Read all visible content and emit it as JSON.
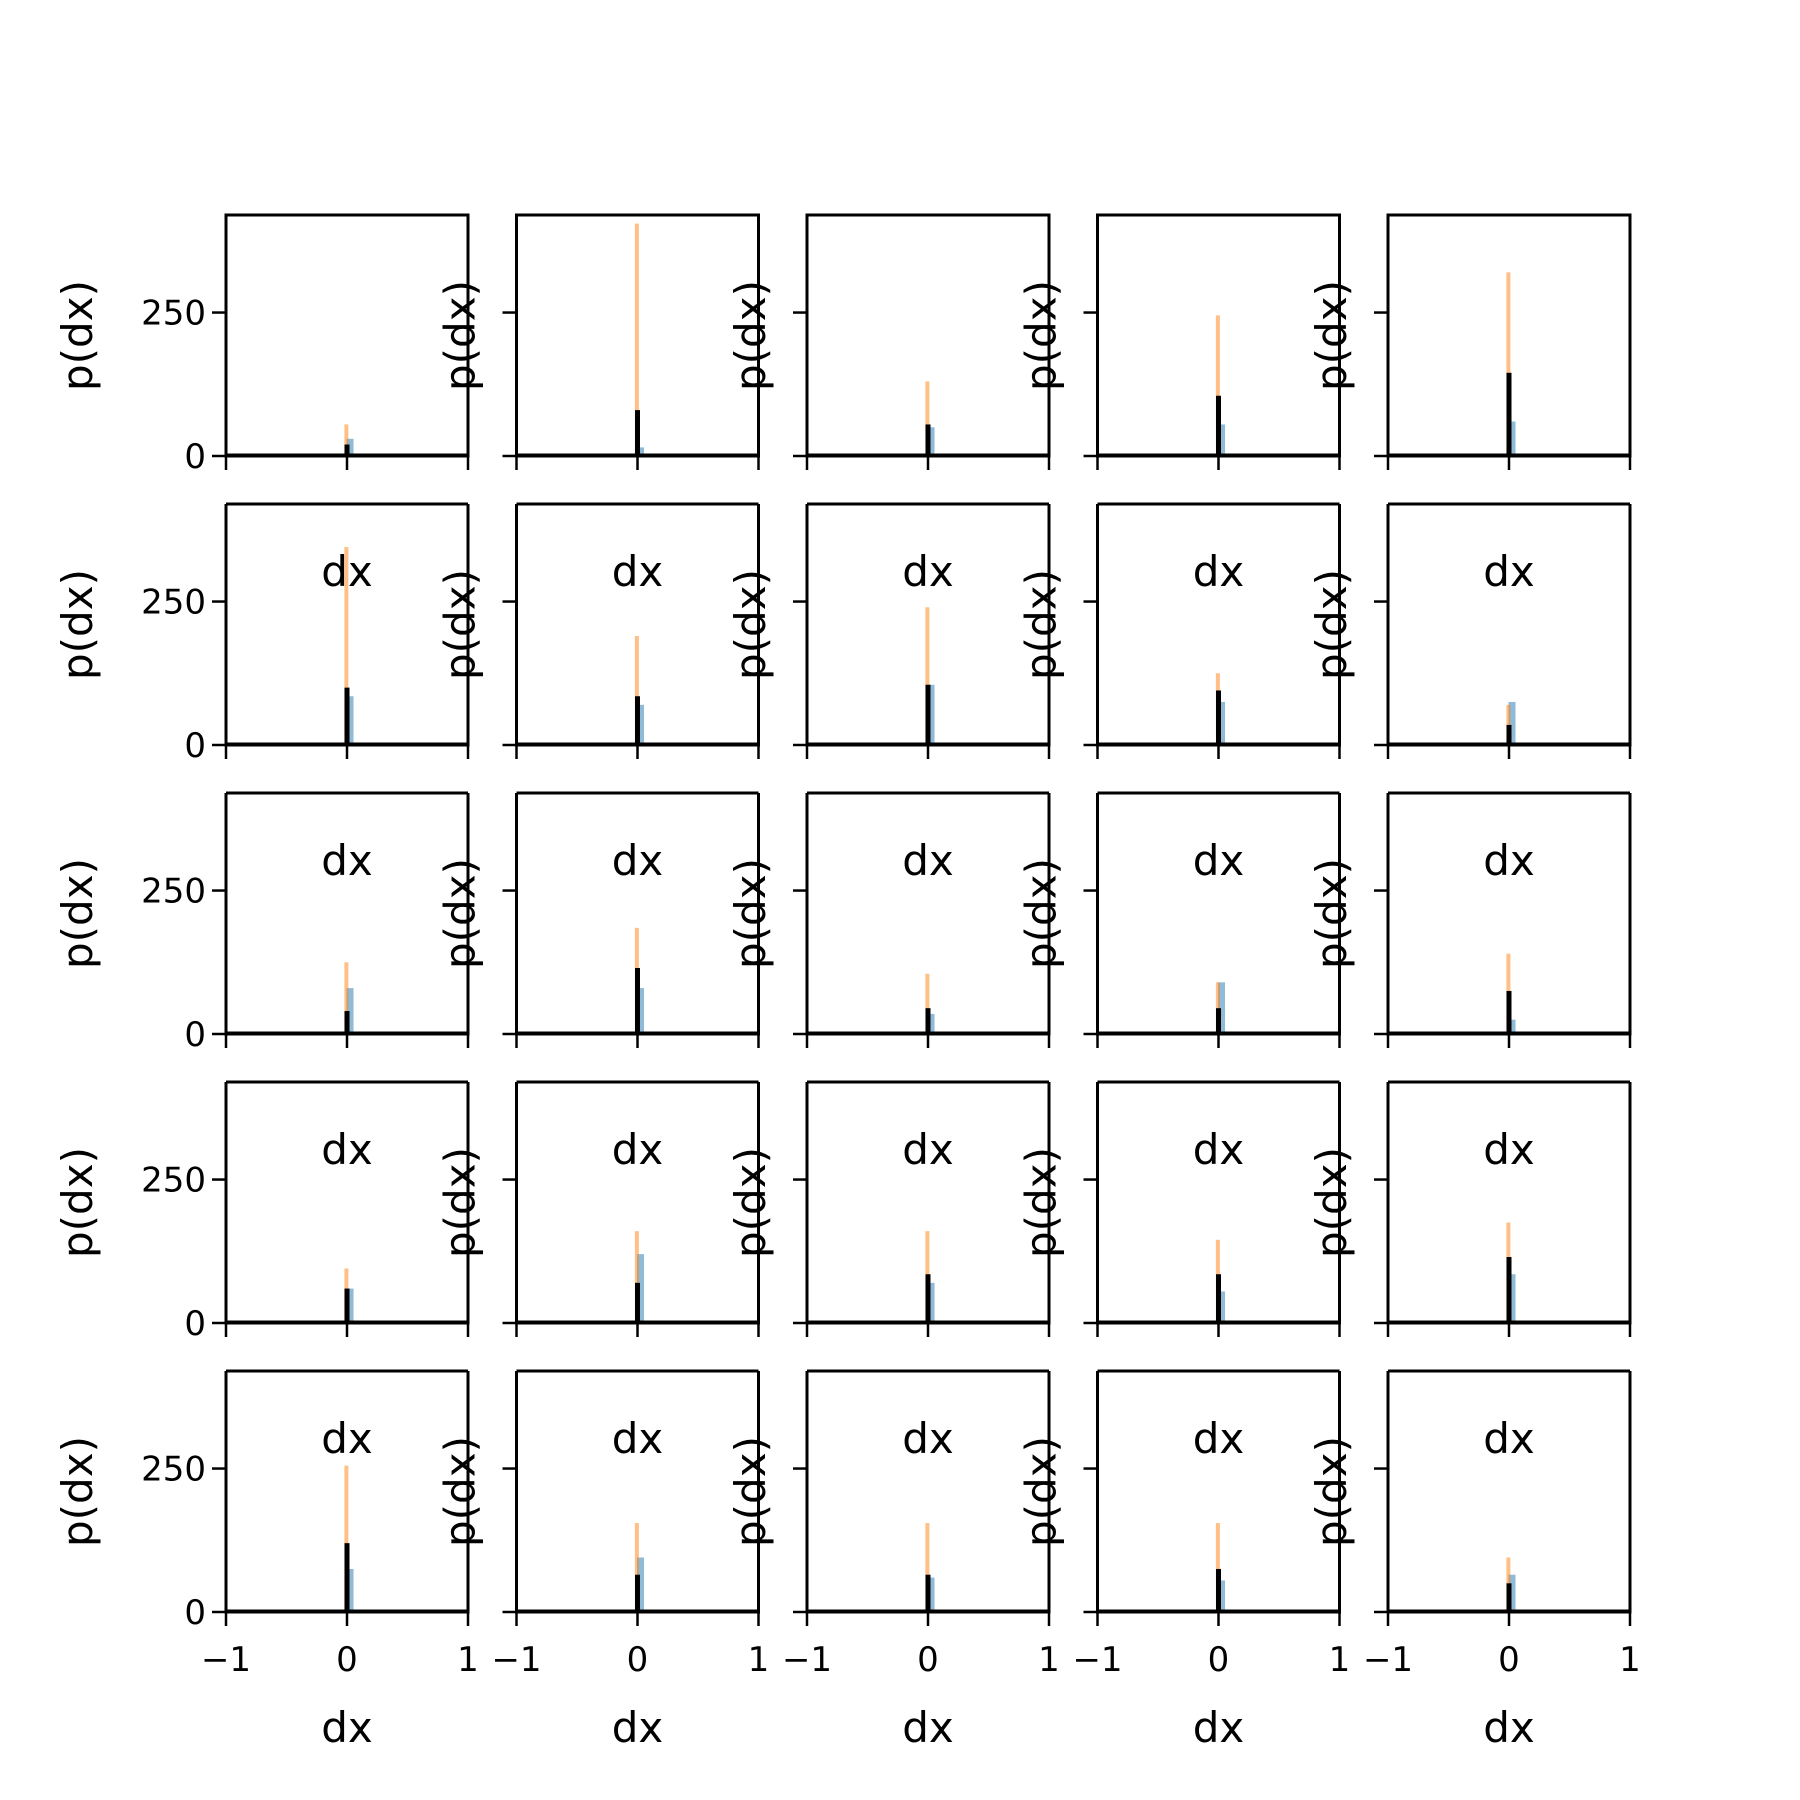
{
  "chart_data": {
    "type": "bar",
    "layout": "grid",
    "rows": 5,
    "cols": 5,
    "xlabel": "dx",
    "ylabel": "p(dx)",
    "xlim": [
      -1,
      1
    ],
    "ylim": [
      0,
      420
    ],
    "xticks": [
      {
        "value": -1,
        "label": "−1"
      },
      {
        "value": 0,
        "label": "0"
      },
      {
        "value": 1,
        "label": "1"
      }
    ],
    "yticks": [
      {
        "value": 0,
        "label": "0"
      },
      {
        "value": 250,
        "label": "250"
      }
    ],
    "series_colors": [
      "#1f77b4",
      "#ff7f0e",
      "#000000"
    ],
    "panels": [
      {
        "peaks": [
          30,
          55,
          20
        ]
      },
      {
        "peaks": [
          15,
          405,
          80
        ]
      },
      {
        "peaks": [
          50,
          130,
          55
        ]
      },
      {
        "peaks": [
          55,
          245,
          105
        ]
      },
      {
        "peaks": [
          60,
          320,
          145
        ]
      },
      {
        "peaks": [
          85,
          345,
          100
        ]
      },
      {
        "peaks": [
          70,
          190,
          85
        ]
      },
      {
        "peaks": [
          105,
          240,
          105
        ]
      },
      {
        "peaks": [
          75,
          125,
          95
        ]
      },
      {
        "peaks": [
          75,
          70,
          35
        ]
      },
      {
        "peaks": [
          80,
          125,
          40
        ]
      },
      {
        "peaks": [
          80,
          185,
          115
        ]
      },
      {
        "peaks": [
          35,
          105,
          45
        ]
      },
      {
        "peaks": [
          90,
          90,
          45
        ]
      },
      {
        "peaks": [
          25,
          140,
          75
        ]
      },
      {
        "peaks": [
          60,
          95,
          60
        ]
      },
      {
        "peaks": [
          120,
          160,
          70
        ]
      },
      {
        "peaks": [
          70,
          160,
          85
        ]
      },
      {
        "peaks": [
          55,
          145,
          85
        ]
      },
      {
        "peaks": [
          85,
          175,
          115
        ]
      },
      {
        "peaks": [
          75,
          255,
          120
        ]
      },
      {
        "peaks": [
          95,
          155,
          65
        ]
      },
      {
        "peaks": [
          60,
          155,
          65
        ]
      },
      {
        "peaks": [
          55,
          155,
          75
        ]
      },
      {
        "peaks": [
          65,
          95,
          50
        ]
      }
    ]
  }
}
